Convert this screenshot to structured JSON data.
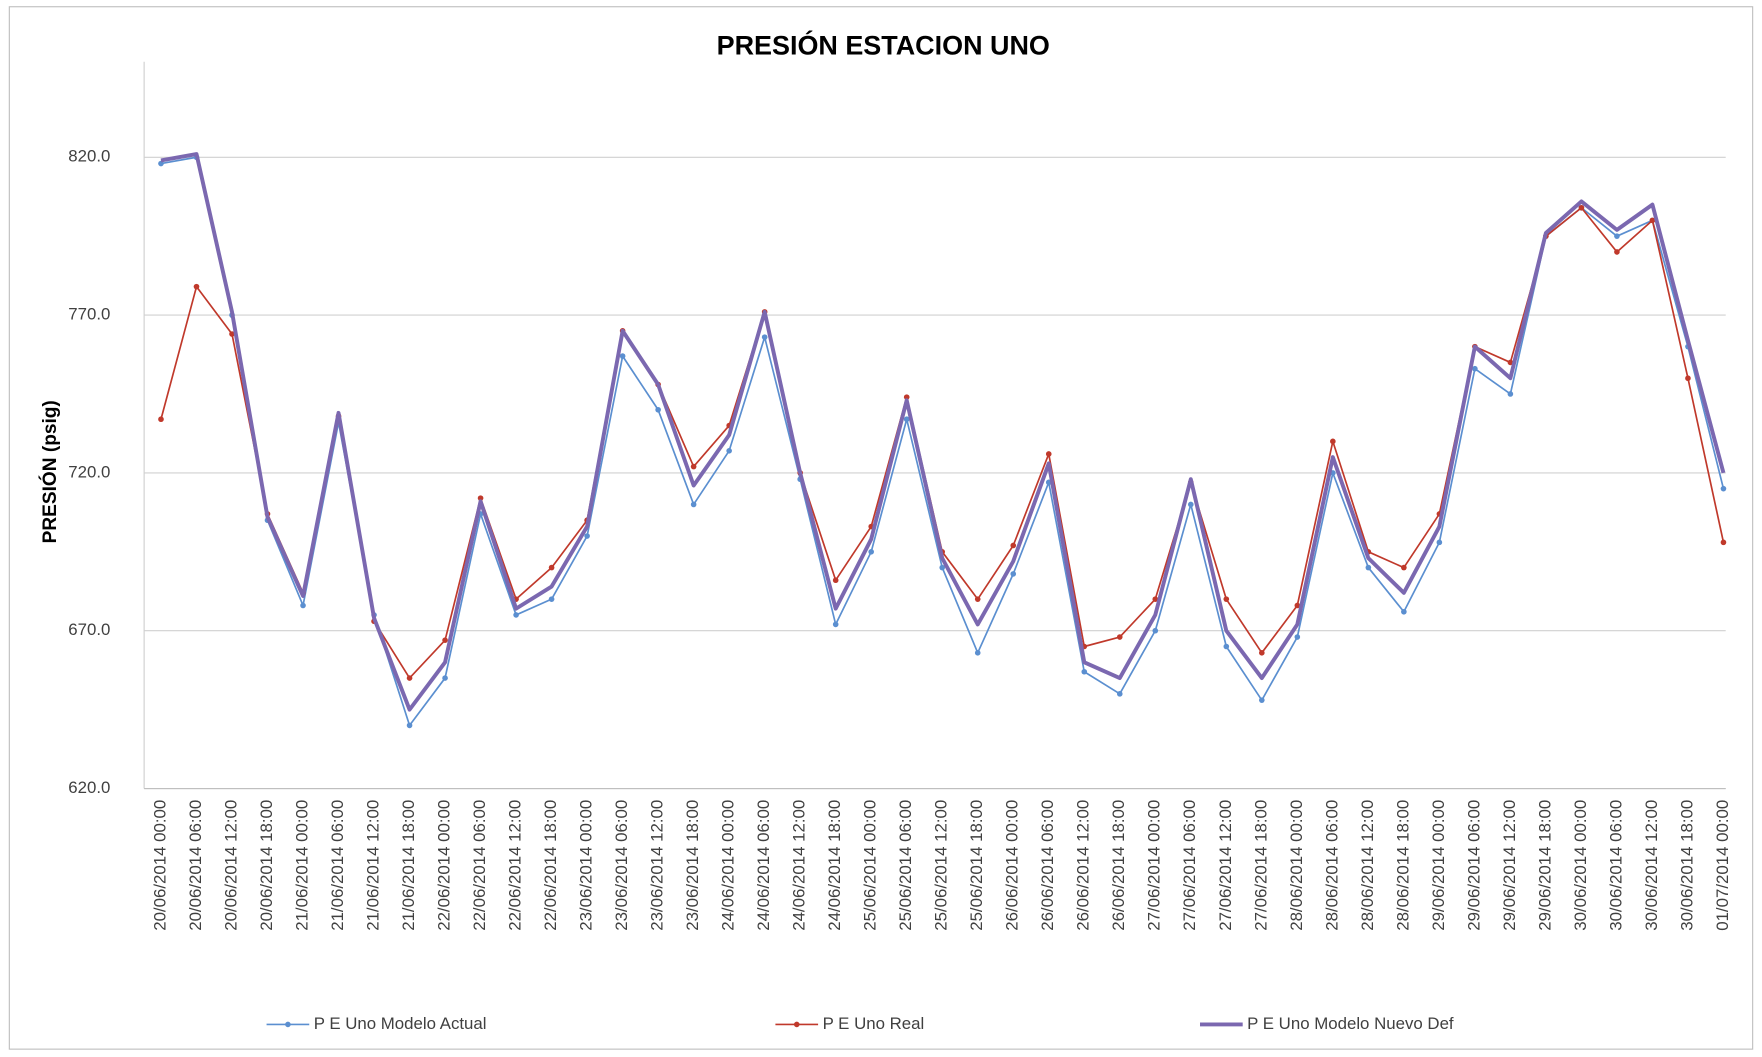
{
  "chart_data": {
    "type": "line",
    "title": "PRESIÓN ESTACION UNO",
    "y_label": "PRESIÓN  (psig)",
    "legend": "bottom",
    "grid": true,
    "ylim": [
      620,
      850
    ],
    "yticks": [
      {
        "value": 620,
        "label": "620.0"
      },
      {
        "value": 670,
        "label": "670.0"
      },
      {
        "value": 720,
        "label": "720.0"
      },
      {
        "value": 770,
        "label": "770.0"
      },
      {
        "value": 820,
        "label": "820.0"
      }
    ],
    "categories": [
      "20/06/2014 00:00",
      "20/06/2014 06:00",
      "20/06/2014 12:00",
      "20/06/2014 18:00",
      "21/06/2014 00:00",
      "21/06/2014 06:00",
      "21/06/2014 12:00",
      "21/06/2014 18:00",
      "22/06/2014 00:00",
      "22/06/2014 06:00",
      "22/06/2014 12:00",
      "22/06/2014 18:00",
      "23/06/2014 00:00",
      "23/06/2014 06:00",
      "23/06/2014 12:00",
      "23/06/2014 18:00",
      "24/06/2014 00:00",
      "24/06/2014 06:00",
      "24/06/2014 12:00",
      "24/06/2014 18:00",
      "25/06/2014 00:00",
      "25/06/2014 06:00",
      "25/06/2014 12:00",
      "25/06/2014 18:00",
      "26/06/2014 00:00",
      "26/06/2014 06:00",
      "26/06/2014 12:00",
      "26/06/2014 18:00",
      "27/06/2014 00:00",
      "27/06/2014 06:00",
      "27/06/2014 12:00",
      "27/06/2014 18:00",
      "28/06/2014 00:00",
      "28/06/2014 06:00",
      "28/06/2014 12:00",
      "28/06/2014 18:00",
      "29/06/2014 00:00",
      "29/06/2014 06:00",
      "29/06/2014 12:00",
      "29/06/2014 18:00",
      "30/06/2014 00:00",
      "30/06/2014 06:00",
      "30/06/2014 12:00",
      "30/06/2014 18:00",
      "01/07/2014 00:00"
    ],
    "series": [
      {
        "name": "P E Uno Modelo Actual",
        "color": "#5b8fd0",
        "width": 1.5,
        "markers": true,
        "values": [
          818,
          820,
          770,
          705,
          678,
          736,
          675,
          640,
          655,
          707,
          675,
          680,
          700,
          757,
          740,
          710,
          727,
          763,
          718,
          672,
          695,
          737,
          690,
          663,
          688,
          717,
          657,
          650,
          670,
          710,
          665,
          648,
          668,
          720,
          690,
          676,
          698,
          753,
          745,
          795,
          804,
          795,
          800,
          760,
          715
        ]
      },
      {
        "name": "P E Uno Real",
        "color": "#c0392b",
        "width": 1.5,
        "markers": true,
        "values": [
          737,
          779,
          764,
          707,
          682,
          738,
          673,
          655,
          667,
          712,
          680,
          690,
          705,
          765,
          748,
          722,
          735,
          771,
          720,
          686,
          703,
          744,
          695,
          680,
          697,
          726,
          665,
          668,
          680,
          717,
          680,
          663,
          678,
          730,
          695,
          690,
          707,
          760,
          755,
          795,
          804,
          790,
          800,
          750,
          698
        ]
      },
      {
        "name": "P E Uno Modelo Nuevo Def",
        "color": "#7b68b0",
        "width": 3.5,
        "markers": false,
        "values": [
          819,
          821,
          771,
          706,
          681,
          739,
          674,
          645,
          660,
          711,
          677,
          684,
          703,
          765,
          748,
          716,
          732,
          771,
          720,
          677,
          699,
          743,
          693,
          672,
          692,
          723,
          660,
          655,
          675,
          718,
          670,
          655,
          672,
          725,
          693,
          682,
          703,
          760,
          750,
          796,
          806,
          797,
          805,
          762,
          720
        ]
      }
    ]
  }
}
